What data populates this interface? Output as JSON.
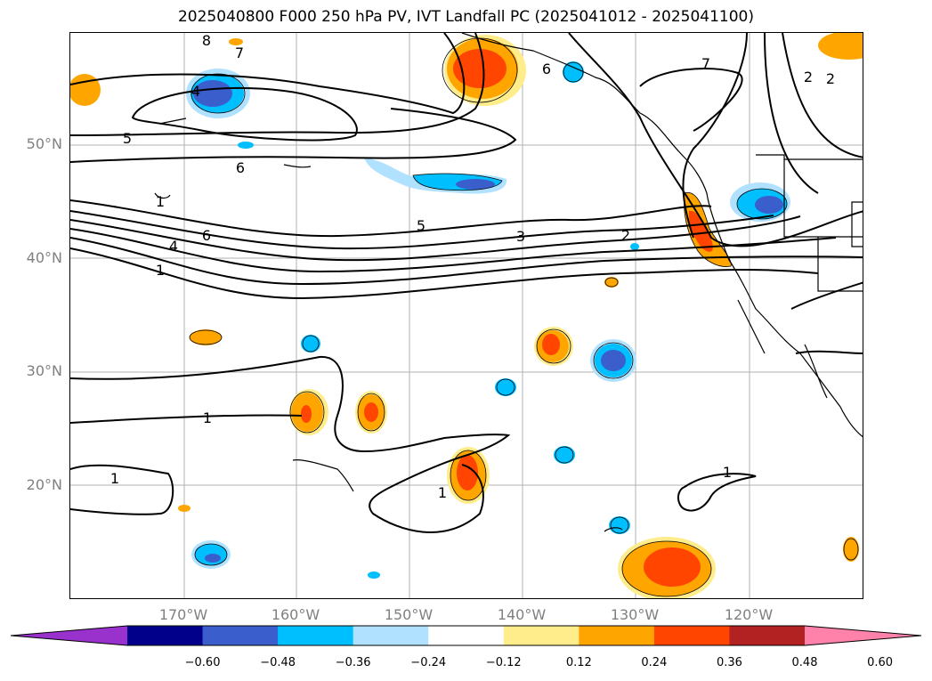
{
  "title": "2025040800 F000 250 hPa PV, IVT Landfall PC (2025041012 - 2025041100)",
  "y_axis_labels": [
    "50°N",
    "40°N",
    "30°N",
    "20°N"
  ],
  "x_axis_labels": [
    "170°W",
    "160°W",
    "150°W",
    "140°W",
    "130°W",
    "120°W"
  ],
  "colorbar": {
    "colors": [
      "#9932cc",
      "#00008b",
      "#3a5fcd",
      "#00bfff",
      "#b0e2ff",
      "#ffffff",
      "#ffec8b",
      "#ffa500",
      "#ff4500",
      "#b22222",
      "#ff82ab"
    ],
    "ticks": [
      "−0.60",
      "−0.48",
      "−0.36",
      "−0.24",
      "−0.12",
      "0.12",
      "0.24",
      "0.36",
      "0.48",
      "0.60"
    ]
  },
  "contour_labels": [
    "8",
    "7",
    "4",
    "5",
    "6",
    "6",
    "5",
    "6",
    "4",
    "1",
    "3",
    "2",
    "2",
    "7",
    "2",
    "1",
    "1",
    "1",
    "1",
    "1"
  ],
  "grid_color": "#b0b0b0",
  "axis_label_color": "#808080"
}
